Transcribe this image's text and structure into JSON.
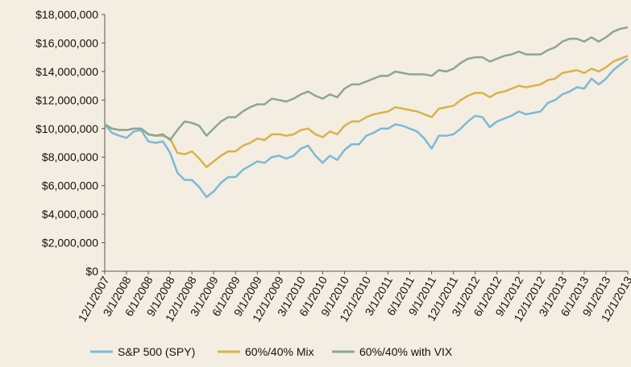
{
  "chart_data": {
    "type": "line",
    "categories": [
      "12/1/2007",
      null,
      null,
      "3/1/2008",
      null,
      null,
      "6/1/2008",
      null,
      null,
      "9/1/2008",
      null,
      null,
      "12/1/2008",
      null,
      null,
      "3/1/2009",
      null,
      null,
      "6/1/2009",
      null,
      null,
      "9/1/2009",
      null,
      null,
      "12/1/2009",
      null,
      null,
      "3/1/2010",
      null,
      null,
      "6/1/2010",
      null,
      null,
      "9/1/2010",
      null,
      null,
      "12/1/2010",
      null,
      null,
      "3/1/2011",
      null,
      null,
      "6/1/2011",
      null,
      null,
      "9/1/2011",
      null,
      null,
      "12/1/2011",
      null,
      null,
      "3/1/2012",
      null,
      null,
      "6/1/2012",
      null,
      null,
      "9/1/2012",
      null,
      null,
      "12/1/2012",
      null,
      null,
      "3/1/2013",
      null,
      null,
      "6/1/2013",
      null,
      null,
      "9/1/2013",
      null,
      null,
      "12/1/2013"
    ],
    "series": [
      {
        "name": "S&P 500 (SPY)",
        "color": "#7cb9d9",
        "values": [
          10300000,
          9700000,
          9500000,
          9350000,
          9800000,
          9900000,
          9100000,
          9000000,
          9100000,
          8300000,
          6900000,
          6400000,
          6400000,
          5900000,
          5200000,
          5600000,
          6200000,
          6600000,
          6600000,
          7100000,
          7400000,
          7700000,
          7600000,
          8000000,
          8100000,
          7900000,
          8100000,
          8600000,
          8800000,
          8100000,
          7600000,
          8100000,
          7800000,
          8500000,
          8900000,
          8900000,
          9500000,
          9700000,
          10000000,
          10000000,
          10300000,
          10200000,
          10000000,
          9800000,
          9300000,
          8600000,
          9500000,
          9500000,
          9600000,
          10000000,
          10500000,
          10900000,
          10800000,
          10100000,
          10500000,
          10700000,
          10900000,
          11200000,
          11000000,
          11100000,
          11200000,
          11800000,
          12000000,
          12400000,
          12600000,
          12900000,
          12800000,
          13500000,
          13100000,
          13500000,
          14100000,
          14500000,
          14900000
        ]
      },
      {
        "name": "60%/40% Mix",
        "color": "#d8b24c",
        "values": [
          10300000,
          10000000,
          9900000,
          9900000,
          10000000,
          10000000,
          9600000,
          9500000,
          9500000,
          9300000,
          8300000,
          8200000,
          8400000,
          7900000,
          7300000,
          7700000,
          8100000,
          8400000,
          8400000,
          8800000,
          9000000,
          9300000,
          9200000,
          9600000,
          9600000,
          9500000,
          9600000,
          9900000,
          10000000,
          9600000,
          9400000,
          9800000,
          9600000,
          10200000,
          10500000,
          10500000,
          10800000,
          11000000,
          11100000,
          11200000,
          11500000,
          11400000,
          11300000,
          11200000,
          11000000,
          10800000,
          11400000,
          11500000,
          11600000,
          12000000,
          12300000,
          12500000,
          12500000,
          12200000,
          12500000,
          12600000,
          12800000,
          13000000,
          12900000,
          13000000,
          13100000,
          13400000,
          13500000,
          13900000,
          14000000,
          14100000,
          13900000,
          14200000,
          14000000,
          14300000,
          14700000,
          14900000,
          15100000
        ]
      },
      {
        "name": "60%/40% with VIX",
        "color": "#8ba696",
        "values": [
          10300000,
          10000000,
          9900000,
          9900000,
          10000000,
          10000000,
          9600000,
          9500000,
          9600000,
          9200000,
          9900000,
          10500000,
          10400000,
          10200000,
          9500000,
          10000000,
          10500000,
          10800000,
          10800000,
          11200000,
          11500000,
          11700000,
          11700000,
          12100000,
          12000000,
          11900000,
          12100000,
          12400000,
          12600000,
          12300000,
          12100000,
          12400000,
          12200000,
          12800000,
          13100000,
          13100000,
          13300000,
          13500000,
          13700000,
          13700000,
          14000000,
          13900000,
          13800000,
          13800000,
          13800000,
          13700000,
          14100000,
          14000000,
          14200000,
          14600000,
          14900000,
          15000000,
          15000000,
          14700000,
          14900000,
          15100000,
          15200000,
          15400000,
          15200000,
          15200000,
          15200000,
          15500000,
          15700000,
          16100000,
          16300000,
          16300000,
          16100000,
          16400000,
          16100000,
          16400000,
          16800000,
          17000000,
          17100000
        ]
      }
    ],
    "ylim": [
      0,
      18000000
    ],
    "yticks": [
      {
        "value": 0,
        "label": "$0"
      },
      {
        "value": 2000000,
        "label": "$2,000,000"
      },
      {
        "value": 4000000,
        "label": "$4,000,000"
      },
      {
        "value": 6000000,
        "label": "$6,000,000"
      },
      {
        "value": 8000000,
        "label": "$8,000,000"
      },
      {
        "value": 10000000,
        "label": "$10,000,000"
      },
      {
        "value": 12000000,
        "label": "$12,000,000"
      },
      {
        "value": 14000000,
        "label": "$14,000,000"
      },
      {
        "value": 16000000,
        "label": "$16,000,000"
      },
      {
        "value": 18000000,
        "label": "$18,000,000"
      }
    ],
    "grid": false,
    "legend": "bottom"
  }
}
